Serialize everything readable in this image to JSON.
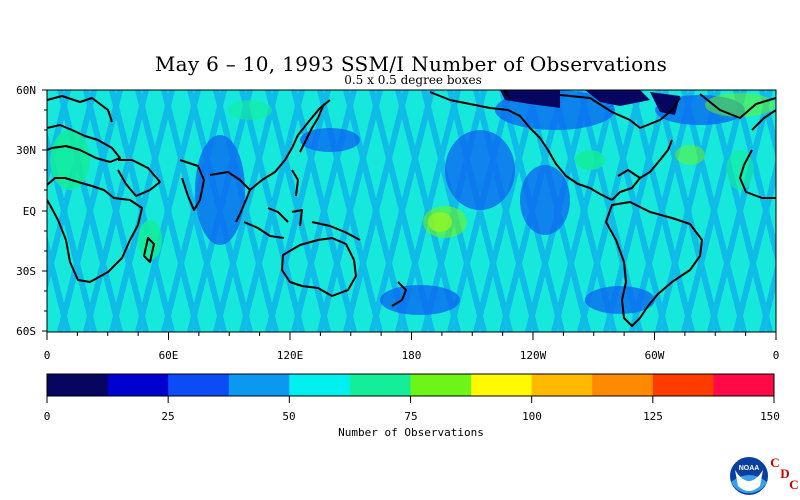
{
  "title": "May 6 – 10, 1993 SSM/I Number of Observations",
  "subtitle": "0.5 x 0.5 degree boxes",
  "map": {
    "lat_labels": [
      "60N",
      "30N",
      "EQ",
      "30S",
      "60S"
    ],
    "lon_labels": [
      "0",
      "60E",
      "120E",
      "180",
      "120W",
      "60W",
      "0"
    ],
    "lat_range": [
      60,
      -60
    ],
    "lon_range": [
      0,
      360
    ],
    "background_color": "#17e8dc"
  },
  "colorbar": {
    "colors": [
      "#06055f",
      "#0000cf",
      "#0b4cf4",
      "#0a98f0",
      "#00f0f0",
      "#14ee9a",
      "#6ef518",
      "#fffa00",
      "#ffba00",
      "#ff8a00",
      "#ff3c00",
      "#ff0a46"
    ],
    "tick_labels": [
      "0",
      "25",
      "50",
      "75",
      "100",
      "125",
      "150"
    ],
    "label": "Number of Observations"
  },
  "logo": {
    "text": "NOAA",
    "letters": [
      "C",
      "D",
      "C"
    ],
    "letters_color": "#cc0000"
  }
}
